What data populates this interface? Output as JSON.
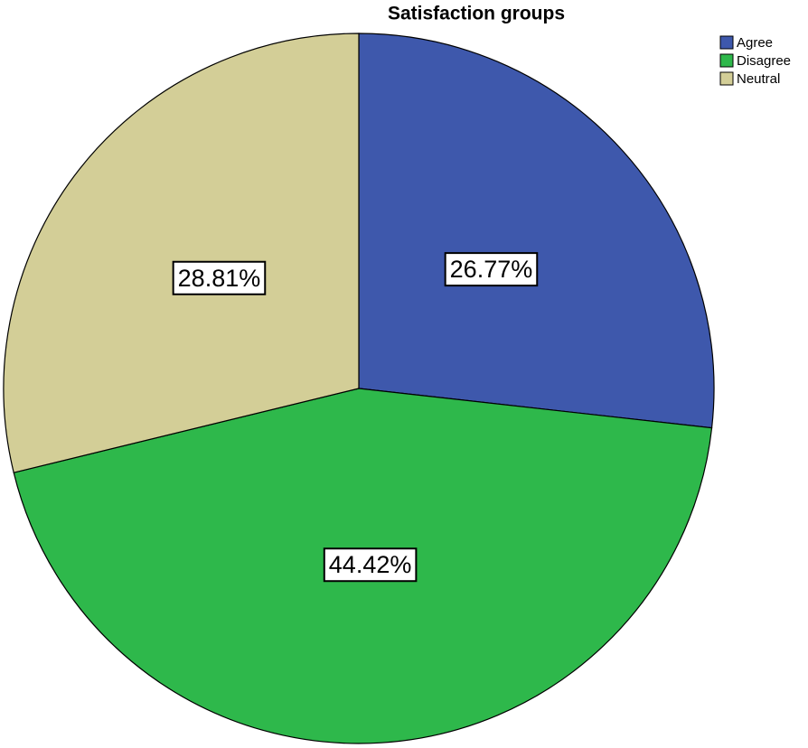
{
  "chart_data": {
    "type": "pie",
    "title": "Satisfaction groups",
    "categories": [
      "Agree",
      "Disagree",
      "Neutral"
    ],
    "values": [
      26.77,
      44.42,
      28.81
    ],
    "value_labels": [
      "26.77%",
      "44.42%",
      "28.81%"
    ],
    "colors": [
      "#3e58ac",
      "#2eb84b",
      "#d3ce97"
    ],
    "legend": "top-right"
  }
}
